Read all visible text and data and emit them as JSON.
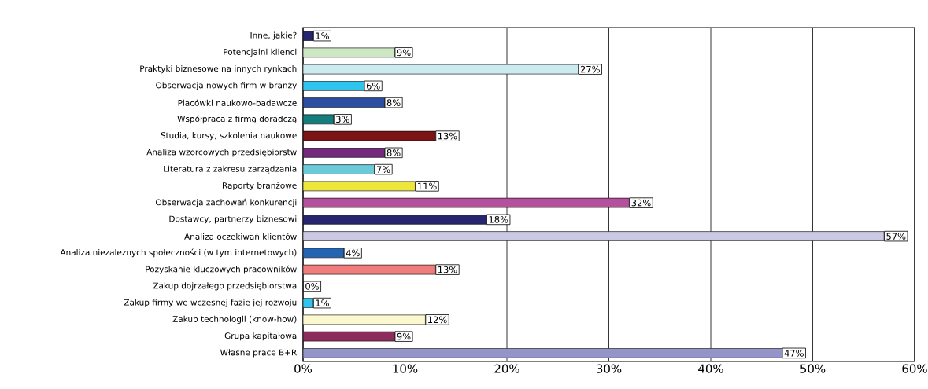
{
  "chart_data": {
    "type": "bar",
    "orientation": "horizontal",
    "categories": [
      "Inne, jakie?",
      "Potencjalni klienci",
      "Praktyki biznesowe na innych rynkach",
      "Obserwacja nowych firm w branży",
      "Placówki naukowo-badawcze",
      "Współpraca z firmą doradczą",
      "Studia, kursy, szkolenia naukowe",
      "Analiza wzorcowych przedsiębiorstw",
      "Literatura z zakresu zarządzania",
      "Raporty branżowe",
      "Obserwacja zachowań konkurencji",
      "Dostawcy, partnerzy biznesowi",
      "Analiza oczekiwań klientów",
      "Analiza niezależnych społeczności (w tym internetowych)",
      "Pozyskanie kluczowych pracowników",
      "Zakup dojrzałego przedsiębiorstwa",
      "Zakup firmy we wczesnej fazie jej rozwoju",
      "Zakup technologii (know-how)",
      "Grupa kapitałowa",
      "Własne prace B+R"
    ],
    "values": [
      1,
      9,
      27,
      6,
      8,
      3,
      13,
      8,
      7,
      11,
      32,
      18,
      57,
      4,
      13,
      0,
      1,
      12,
      9,
      47
    ],
    "value_labels": [
      "1%",
      "9%",
      "27%",
      "6%",
      "8%",
      "3%",
      "13%",
      "8%",
      "7%",
      "11%",
      "32%",
      "18%",
      "57%",
      "4%",
      "13%",
      "0%",
      "1%",
      "12%",
      "9%",
      "47%"
    ],
    "colors": [
      "#26266e",
      "#cde6c4",
      "#cdeaf0",
      "#2ec4ee",
      "#2c4ea0",
      "#137e7c",
      "#7a1416",
      "#74287e",
      "#6ccad8",
      "#eee63a",
      "#b4509c",
      "#26266e",
      "#cbc8e4",
      "#2464b0",
      "#f07c7c",
      "#ffffff",
      "#2ec4ee",
      "#fbf8d0",
      "#8c2c5c",
      "#9494c8"
    ],
    "xlim": [
      0,
      60
    ],
    "xticks": [
      {
        "value": 0,
        "label": "0%"
      },
      {
        "value": 10,
        "label": "10%"
      },
      {
        "value": 20,
        "label": "20%"
      },
      {
        "value": 30,
        "label": "30%"
      },
      {
        "value": 40,
        "label": "40%"
      },
      {
        "value": 50,
        "label": "50%"
      },
      {
        "value": 60,
        "label": "60%"
      }
    ],
    "grid": "x"
  }
}
